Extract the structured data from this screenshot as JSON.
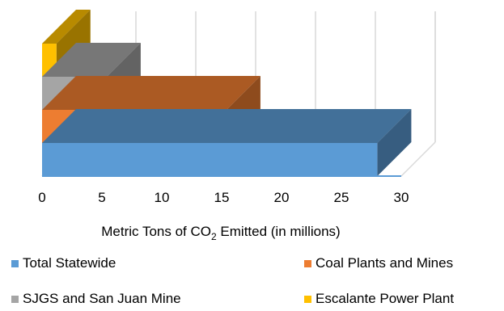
{
  "chart_data": {
    "type": "bar",
    "orientation": "horizontal",
    "style": "3d-stacked-depth",
    "xlabel_main": "Metric Tons of CO",
    "xlabel_sub": "2",
    "xlabel_rest": " Emitted (in millions)",
    "xlim": [
      0,
      30
    ],
    "ticks": [
      "0",
      "5",
      "10",
      "15",
      "20",
      "25",
      "30"
    ],
    "grid": true,
    "legend_position": "bottom",
    "series": [
      {
        "name": "Total Statewide",
        "value": 28.0,
        "color": "#5B9BD5"
      },
      {
        "name": "Coal Plants and Mines",
        "value": 15.4,
        "color": "#ED7D31"
      },
      {
        "name": "SJGS and San Juan Mine",
        "value": 5.4,
        "color": "#A5A5A5"
      },
      {
        "name": "Escalante Power Plant",
        "value": 1.2,
        "color": "#FFC000"
      }
    ]
  }
}
